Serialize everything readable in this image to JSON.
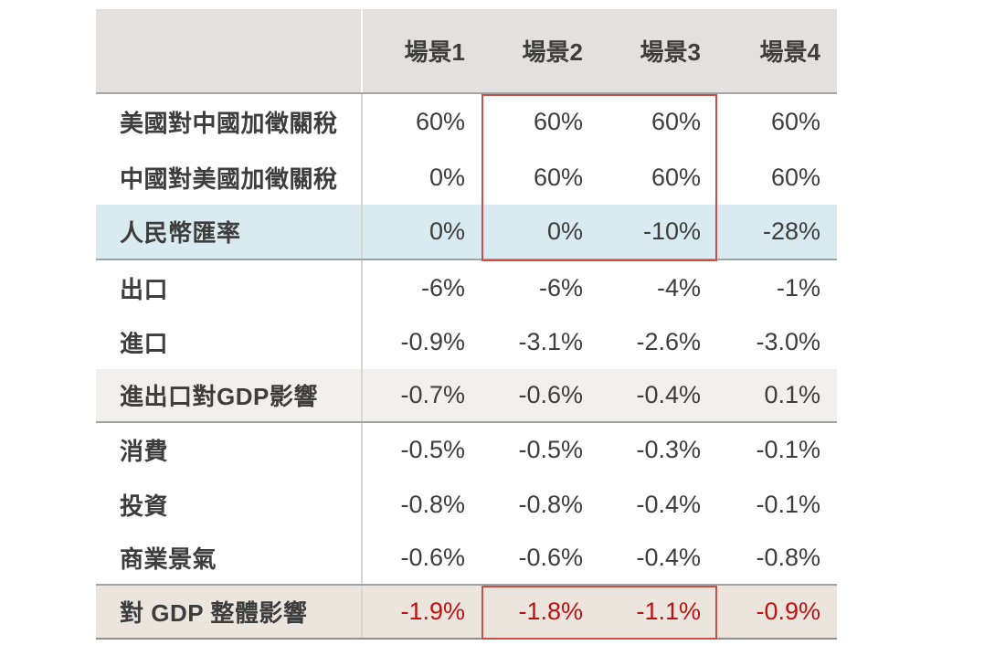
{
  "chart_data": {
    "type": "table",
    "title": "",
    "columns": [
      "場景1",
      "場景2",
      "場景3",
      "場景4"
    ],
    "rows": [
      {
        "label": "美國對中國加徵關稅",
        "values": [
          "60%",
          "60%",
          "60%",
          "60%"
        ],
        "highlight": "none"
      },
      {
        "label": "中國對美國加徵關稅",
        "values": [
          "0%",
          "60%",
          "60%",
          "60%"
        ],
        "highlight": "none"
      },
      {
        "label": "人民幣匯率",
        "values": [
          "0%",
          "0%",
          "-10%",
          "-28%"
        ],
        "highlight": "blue"
      },
      {
        "label": "出口",
        "values": [
          "-6%",
          "-6%",
          "-4%",
          "-1%"
        ],
        "highlight": "none"
      },
      {
        "label": "進口",
        "values": [
          "-0.9%",
          "-3.1%",
          "-2.6%",
          "-3.0%"
        ],
        "highlight": "none"
      },
      {
        "label": "進出口對GDP影響",
        "values": [
          "-0.7%",
          "-0.6%",
          "-0.4%",
          "0.1%"
        ],
        "highlight": "gray"
      },
      {
        "label": "消費",
        "values": [
          "-0.5%",
          "-0.5%",
          "-0.3%",
          "-0.1%"
        ],
        "highlight": "none"
      },
      {
        "label": "投資",
        "values": [
          "-0.8%",
          "-0.8%",
          "-0.4%",
          "-0.1%"
        ],
        "highlight": "none"
      },
      {
        "label": "商業景氣",
        "values": [
          "-0.6%",
          "-0.6%",
          "-0.4%",
          "-0.8%"
        ],
        "highlight": "none"
      },
      {
        "label": "對 GDP 整體影響",
        "values": [
          "-1.9%",
          "-1.8%",
          "-1.1%",
          "-0.9%"
        ],
        "highlight": "beige",
        "value_color": "red"
      }
    ],
    "annotations": {
      "red_box_top": "outline around 場景2–場景3 cells of rows 美國對中國加徵關稅 / 中國對美國加徵關稅 / 人民幣匯率",
      "red_box_bottom": "outline around 場景2–場景3 cells of row 對 GDP 整體影響"
    },
    "layout": {
      "grid": "horizontal separators under header, 人民幣匯率, 進出口對GDP影響, 商業景氣 and at table bottom; light vertical divider after label column"
    },
    "colors": {
      "header_bg": "#e3e1df",
      "row_blue": "#d9eaf1",
      "row_gray": "#f1f0ee",
      "row_beige": "#ebe5de",
      "text": "#3d3d3d",
      "red_text": "#bf1212",
      "red_box_border": "#cc4f48",
      "separator": "#a2a2a2",
      "column_divider": "#d8d6d4"
    }
  }
}
